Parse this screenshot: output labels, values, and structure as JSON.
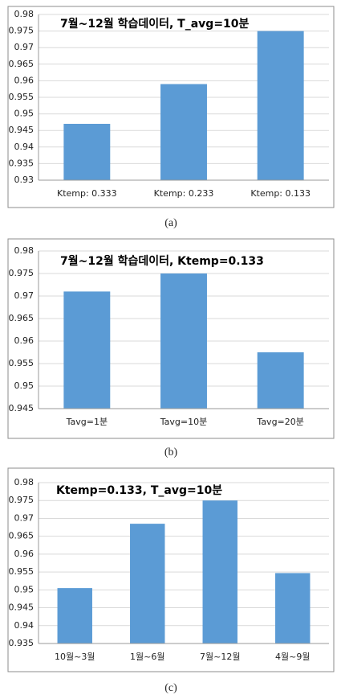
{
  "chart_data": [
    {
      "type": "bar",
      "title": "7월~12월 학습데이터,  T_avg=10분",
      "caption": "(a)",
      "categories": [
        "Ktemp: 0.333",
        "Ktemp: 0.233",
        "Ktemp: 0.133"
      ],
      "values": [
        0.947,
        0.959,
        0.975
      ],
      "color": "#5b9bd5",
      "ylim": [
        0.93,
        0.98
      ],
      "yticks": [
        0.93,
        0.935,
        0.94,
        0.945,
        0.95,
        0.955,
        0.96,
        0.965,
        0.97,
        0.975,
        0.98
      ],
      "grid": true
    },
    {
      "type": "bar",
      "title": "7월~12월 학습데이터,  Ktemp=0.133",
      "caption": "(b)",
      "categories": [
        "Tavg=1분",
        "Tavg=10분",
        "Tavg=20분"
      ],
      "values": [
        0.971,
        0.975,
        0.9575
      ],
      "color": "#5b9bd5",
      "ylim": [
        0.945,
        0.98
      ],
      "yticks": [
        0.945,
        0.95,
        0.955,
        0.96,
        0.965,
        0.97,
        0.975,
        0.98
      ],
      "grid": true
    },
    {
      "type": "bar",
      "title": "Ktemp=0.133,  T_avg=10분",
      "caption": "(c)",
      "categories": [
        "10월~3월",
        "1월~6월",
        "7월~12월",
        "4월~9월"
      ],
      "values": [
        0.9505,
        0.9685,
        0.975,
        0.9547
      ],
      "color": "#5b9bd5",
      "ylim": [
        0.935,
        0.98
      ],
      "yticks": [
        0.935,
        0.94,
        0.945,
        0.95,
        0.955,
        0.96,
        0.965,
        0.97,
        0.975,
        0.98
      ],
      "grid": true
    }
  ]
}
